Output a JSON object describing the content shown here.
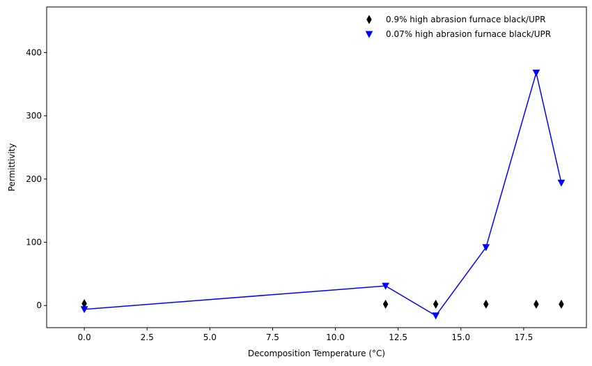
{
  "chart_data": {
    "type": "scatter",
    "title": "",
    "xlabel": "Decomposition Temperature (°C)",
    "ylabel": "Permittivity",
    "xlim": [
      -1.5,
      20.0
    ],
    "ylim": [
      -35,
      472
    ],
    "x_ticks": [
      0.0,
      2.5,
      5.0,
      7.5,
      10.0,
      12.5,
      15.0,
      17.5
    ],
    "x_tick_labels": [
      "0.0",
      "2.5",
      "5.0",
      "7.5",
      "10.0",
      "12.5",
      "15.0",
      "17.5"
    ],
    "y_ticks": [
      0,
      100,
      200,
      300,
      400
    ],
    "y_tick_labels": [
      "0",
      "100",
      "200",
      "300",
      "400"
    ],
    "grid": false,
    "legend_position": "top-right",
    "series": [
      {
        "name": "0.9% high abrasion furnace black/UPR",
        "marker": "thin-diamond",
        "color": "#000000",
        "line": false,
        "x": [
          0,
          12,
          14,
          16,
          18,
          19
        ],
        "y": [
          3,
          2,
          2,
          2,
          2,
          2
        ]
      },
      {
        "name": "0.07% high abrasion furnace black/UPR",
        "marker": "triangle-down",
        "color": "#0000ff",
        "line": true,
        "x": [
          0,
          12,
          14,
          16,
          18,
          19
        ],
        "y": [
          -6,
          31,
          -16,
          92,
          368,
          194
        ]
      }
    ]
  }
}
